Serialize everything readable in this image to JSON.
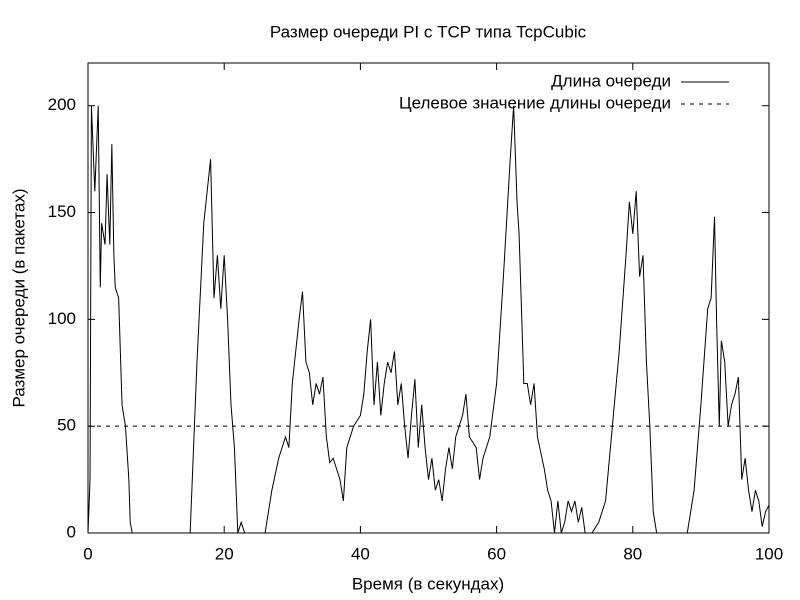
{
  "chart_data": {
    "type": "line",
    "title": "Размер очереди PI с TCP типа TcpCubic",
    "xlabel": "Время (в секундах)",
    "ylabel": "Размер очереди (в пакетах)",
    "xlim": [
      0,
      100
    ],
    "ylim": [
      0,
      220
    ],
    "xticks": [
      0,
      20,
      40,
      60,
      80,
      100
    ],
    "yticks": [
      0,
      50,
      100,
      150,
      200
    ],
    "legend": "top-right",
    "series": [
      {
        "name": "Длина очереди",
        "color": "#000000",
        "dash": "solid",
        "x": [
          0,
          0.3,
          0.5,
          1,
          1.5,
          1.8,
          2,
          2.5,
          2.8,
          3.2,
          3.5,
          3.8,
          4,
          4.5,
          5,
          5.5,
          6,
          6.2,
          6.5,
          15,
          16,
          17,
          18,
          18.5,
          19,
          19.5,
          20,
          20.5,
          21,
          21.5,
          22,
          22.5,
          23,
          26,
          27,
          28,
          29,
          29.5,
          30,
          31,
          31.5,
          32,
          32.5,
          33,
          33.5,
          34,
          34.5,
          35,
          35.5,
          36,
          37,
          37.5,
          38,
          39,
          40,
          40.5,
          41,
          41.5,
          42,
          42.5,
          43,
          43.5,
          44,
          44.5,
          45,
          45.5,
          46,
          46.5,
          47,
          47.5,
          48,
          48.5,
          49,
          49.5,
          50,
          50.5,
          51,
          51.5,
          52,
          52.5,
          53,
          53.5,
          54,
          55,
          55.5,
          56,
          57,
          57.5,
          58,
          59,
          60,
          61,
          62,
          62.5,
          63,
          63.3,
          63.8,
          64,
          64.5,
          65,
          65.5,
          66,
          67,
          67.5,
          68,
          68.5,
          69,
          69.5,
          70,
          70.5,
          71,
          71.5,
          72,
          72.5,
          73,
          74,
          75,
          76,
          77,
          78,
          79,
          79.5,
          80,
          80.5,
          81,
          81.5,
          82,
          82.5,
          83,
          83.5,
          88,
          89,
          90,
          91,
          91.5,
          92,
          92.3,
          92.7,
          93,
          93.5,
          94,
          94.5,
          95,
          95.5,
          96,
          96.5,
          97,
          97.5,
          98,
          98.5,
          99,
          99.5,
          100
        ],
        "values": [
          0,
          25,
          200,
          160,
          200,
          115,
          145,
          135,
          168,
          135,
          182,
          130,
          115,
          110,
          60,
          50,
          25,
          5,
          0,
          0,
          80,
          145,
          175,
          110,
          130,
          105,
          130,
          100,
          60,
          40,
          0,
          5,
          0,
          0,
          20,
          35,
          45,
          40,
          70,
          100,
          113,
          80,
          75,
          60,
          70,
          65,
          73,
          45,
          33,
          35,
          25,
          15,
          40,
          50,
          55,
          65,
          85,
          100,
          60,
          80,
          55,
          70,
          80,
          75,
          85,
          60,
          70,
          50,
          35,
          55,
          72,
          40,
          60,
          40,
          25,
          35,
          20,
          25,
          15,
          30,
          40,
          30,
          45,
          55,
          65,
          45,
          40,
          25,
          35,
          45,
          70,
          120,
          175,
          200,
          155,
          140,
          90,
          70,
          70,
          60,
          70,
          45,
          30,
          20,
          15,
          0,
          15,
          0,
          5,
          15,
          10,
          15,
          5,
          12,
          0,
          0,
          5,
          15,
          50,
          85,
          130,
          155,
          140,
          160,
          120,
          130,
          80,
          50,
          10,
          0,
          0,
          20,
          60,
          105,
          110,
          148,
          100,
          50,
          90,
          80,
          50,
          60,
          65,
          73,
          25,
          35,
          20,
          10,
          20,
          15,
          3,
          10,
          13
        ]
      },
      {
        "name": "Целевое значение длины очереди",
        "color": "#000000",
        "dash": "dashed",
        "x": [
          0,
          100
        ],
        "values": [
          50,
          50
        ]
      }
    ]
  }
}
